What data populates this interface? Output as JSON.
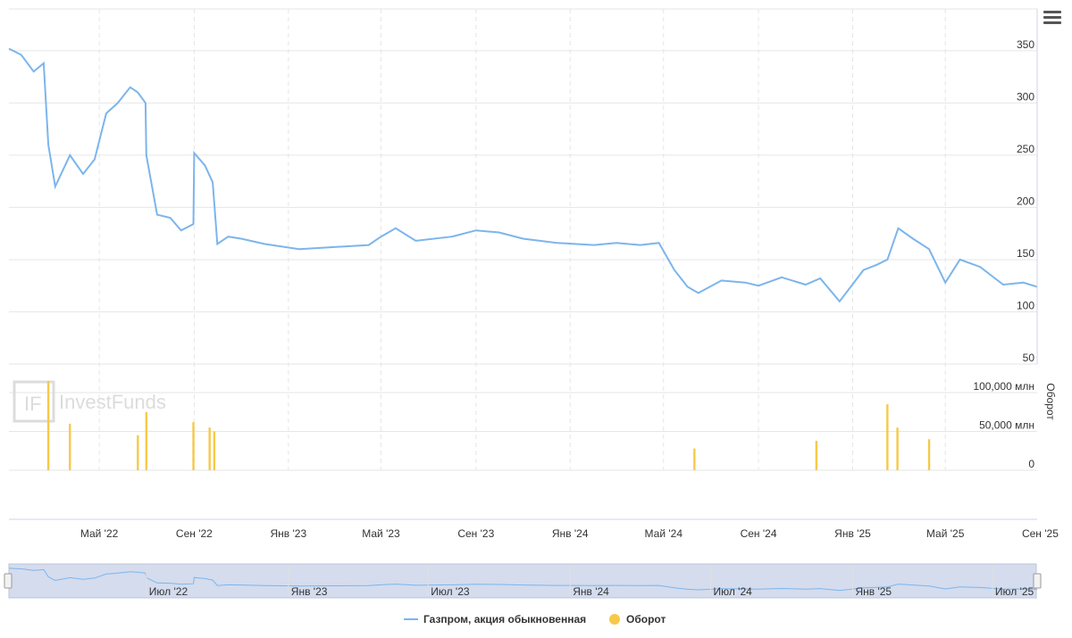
{
  "menu_icon": "hamburger-icon",
  "watermark": "InvestFunds",
  "colors": {
    "price": "#7cb5ec",
    "volume": "#f7c948",
    "grid": "#e6e6e6",
    "navigator_fill": "#ccd6eb"
  },
  "chart_data": [
    {
      "type": "line",
      "title": "",
      "series": [
        {
          "name": "Газпром, акция обыкновенная",
          "x": [
            "2022-01-04",
            "2022-01-20",
            "2022-02-05",
            "2022-02-18",
            "2022-02-24",
            "2022-03-05",
            "2022-03-24",
            "2022-04-10",
            "2022-04-25",
            "2022-05-10",
            "2022-05-25",
            "2022-06-10",
            "2022-06-20",
            "2022-06-30",
            "2022-07-01",
            "2022-07-15",
            "2022-08-01",
            "2022-08-15",
            "2022-08-31",
            "2022-09-01",
            "2022-09-15",
            "2022-09-25",
            "2022-10-01",
            "2022-10-15",
            "2022-11-01",
            "2022-12-01",
            "2023-01-15",
            "2023-03-01",
            "2023-04-15",
            "2023-05-01",
            "2023-05-20",
            "2023-06-15",
            "2023-08-01",
            "2023-09-01",
            "2023-10-01",
            "2023-11-01",
            "2023-12-15",
            "2024-02-01",
            "2024-03-01",
            "2024-04-01",
            "2024-04-25",
            "2024-05-15",
            "2024-06-01",
            "2024-06-15",
            "2024-07-15",
            "2024-08-15",
            "2024-09-01",
            "2024-10-01",
            "2024-11-01",
            "2024-11-20",
            "2024-12-15",
            "2025-01-15",
            "2025-02-01",
            "2025-02-15",
            "2025-03-01",
            "2025-03-20",
            "2025-04-10",
            "2025-05-01",
            "2025-05-20",
            "2025-06-15",
            "2025-07-15",
            "2025-08-10",
            "2025-08-28"
          ],
          "values": [
            352,
            346,
            330,
            338,
            260,
            220,
            250,
            232,
            246,
            290,
            300,
            315,
            310,
            300,
            250,
            193,
            190,
            178,
            184,
            252,
            240,
            224,
            165,
            172,
            170,
            165,
            160,
            162,
            164,
            172,
            180,
            168,
            172,
            178,
            176,
            170,
            166,
            164,
            166,
            164,
            166,
            140,
            124,
            118,
            130,
            128,
            125,
            133,
            126,
            132,
            110,
            140,
            145,
            150,
            180,
            170,
            160,
            128,
            150,
            143,
            126,
            128,
            124
          ]
        }
      ],
      "ylim": [
        50,
        390
      ],
      "yticks": [
        50,
        100,
        150,
        200,
        250,
        300,
        350
      ],
      "xticks": [
        "Май '22",
        "Сен '22",
        "Янв '23",
        "Май '23",
        "Сен '23",
        "Янв '24",
        "Май '24",
        "Сен '24",
        "Янв '25",
        "Май '25",
        "Сен '25"
      ],
      "grid": true,
      "legend": "bottom"
    },
    {
      "type": "bar",
      "series": [
        {
          "name": "Оборот"
        }
      ],
      "ylabel": "Оборот",
      "yticks": [
        "0",
        "50,000 млн",
        "100,000 млн"
      ],
      "ylim": [
        0,
        115000
      ],
      "x": [
        "2022-02-24",
        "2022-03-24",
        "2022-06-20",
        "2022-07-01",
        "2022-08-31",
        "2022-09-21",
        "2022-09-27",
        "2024-06-10",
        "2024-11-15",
        "2025-02-15",
        "2025-02-28",
        "2025-04-10"
      ],
      "values": [
        115000,
        60000,
        45000,
        75000,
        62000,
        55000,
        50000,
        28000,
        38000,
        85000,
        55000,
        40000
      ]
    },
    {
      "type": "area",
      "role": "navigator",
      "xticks": [
        "Июл '22",
        "Янв '23",
        "Июл '23",
        "Янв '24",
        "Июл '24",
        "Янв '25",
        "Июл '25"
      ]
    }
  ]
}
